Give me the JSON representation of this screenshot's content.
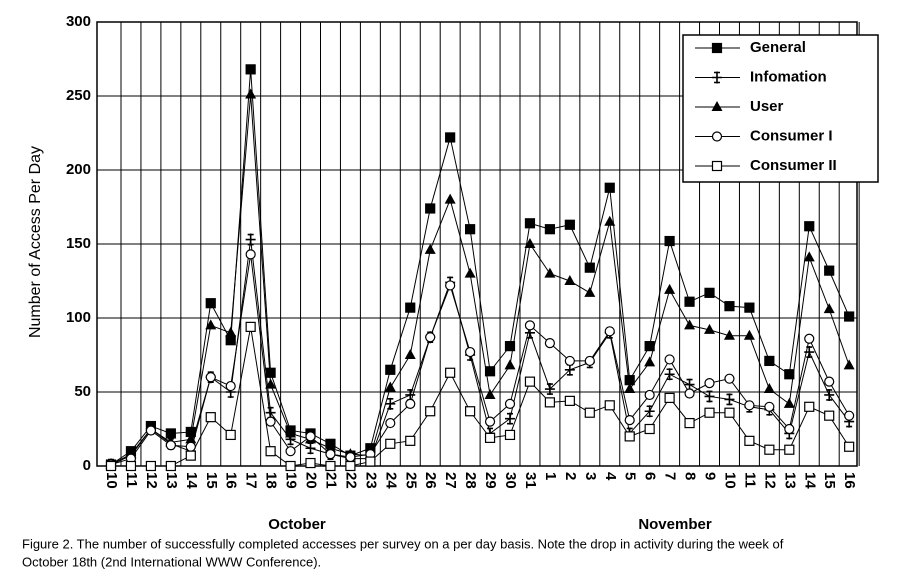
{
  "chart_data": {
    "type": "line",
    "ylabel": "Number of Access Per Day",
    "categories": [
      "10",
      "11",
      "12",
      "13",
      "14",
      "15",
      "16",
      "17",
      "18",
      "19",
      "20",
      "21",
      "22",
      "23",
      "24",
      "25",
      "26",
      "27",
      "28",
      "29",
      "30",
      "31",
      "1",
      "2",
      "3",
      "4",
      "5",
      "6",
      "7",
      "8",
      "9",
      "10",
      "11",
      "12",
      "13",
      "14",
      "15",
      "16"
    ],
    "month_labels": [
      "October",
      "November"
    ],
    "ylim": [
      0,
      300
    ],
    "yticks": [
      0,
      50,
      100,
      150,
      200,
      250,
      300
    ],
    "grid": true,
    "legend": "top-right",
    "series": [
      {
        "name": "General",
        "color": "#000000",
        "marker": "filled-square",
        "values": [
          1,
          10,
          27,
          22,
          23,
          110,
          85,
          268,
          63,
          24,
          22,
          15,
          7,
          12,
          65,
          107,
          174,
          222,
          160,
          64,
          81,
          164,
          160,
          163,
          134,
          188,
          58,
          81,
          152,
          111,
          117,
          108,
          107,
          71,
          62,
          162,
          132,
          101
        ]
      },
      {
        "name": "Infomation",
        "color": "#000000",
        "marker": "plus",
        "values": [
          1,
          7,
          25,
          15,
          10,
          60,
          50,
          153,
          36,
          18,
          12,
          8,
          5,
          5,
          42,
          48,
          87,
          124,
          75,
          22,
          32,
          90,
          52,
          65,
          70,
          90,
          22,
          37,
          62,
          55,
          47,
          45,
          40,
          38,
          22,
          77,
          48,
          30
        ]
      },
      {
        "name": "User",
        "color": "#000000",
        "marker": "filled-triangle",
        "values": [
          1,
          8,
          25,
          16,
          18,
          95,
          90,
          251,
          55,
          22,
          18,
          12,
          8,
          7,
          53,
          75,
          146,
          180,
          130,
          48,
          68,
          150,
          130,
          125,
          117,
          165,
          52,
          70,
          119,
          95,
          92,
          88,
          88,
          52,
          42,
          141,
          106,
          68
        ]
      },
      {
        "name": "Consumer I",
        "color": "#000000",
        "marker": "open-circle",
        "values": [
          1,
          5,
          24,
          14,
          13,
          60,
          54,
          143,
          30,
          10,
          20,
          8,
          6,
          8,
          29,
          42,
          87,
          122,
          77,
          30,
          42,
          95,
          83,
          71,
          71,
          91,
          31,
          48,
          72,
          49,
          56,
          59,
          41,
          40,
          25,
          86,
          57,
          34
        ]
      },
      {
        "name": "Consumer II",
        "color": "#000000",
        "marker": "open-square",
        "values": [
          0,
          0,
          0,
          0,
          7,
          33,
          21,
          94,
          10,
          0,
          2,
          0,
          0,
          3,
          15,
          17,
          37,
          63,
          37,
          19,
          21,
          57,
          43,
          44,
          36,
          41,
          20,
          25,
          46,
          29,
          36,
          36,
          17,
          11,
          11,
          40,
          34,
          13
        ]
      }
    ],
    "caption": [
      "Figure 2. The number of successfully completed accesses per survey on a per day basis. Note the drop in activity during the week of",
      "October 18th (2nd International WWW Conference)."
    ]
  }
}
